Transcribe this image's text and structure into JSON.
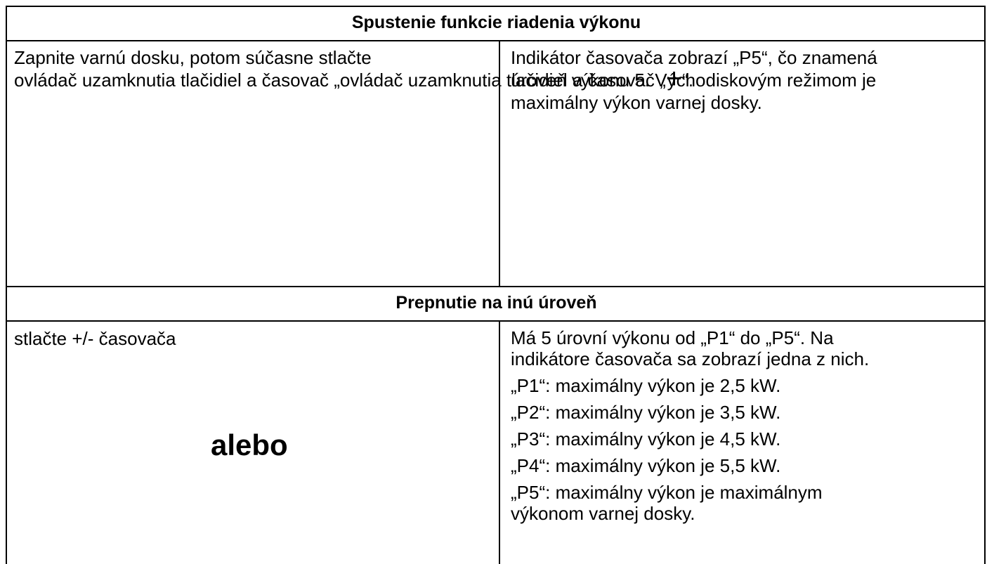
{
  "sections": [
    {
      "heading": "Spustenie funkcie riadenia výkonu",
      "left": {
        "lines": [
          "Zapnite varnú dosku, potom súčasne stlačte",
          "ovládač uzamknutia tlačidiel a časovač „"
        ],
        "symbol": "+",
        "after": "“."
      },
      "right": {
        "lines": [
          "Indikátor časovača zobrazí „P5“, čo znamená",
          "úroveň výkonu 5. Východiskovým režimom je",
          "maximálny výkon varnej dosky."
        ]
      }
    },
    {
      "heading": "Prepnutie na inú úroveň",
      "left": {
        "lines": [
          "stlačte +/- časovača"
        ],
        "connector": "alebo"
      },
      "right": {
        "lines": [
          "Má 5 úrovní výkonu od „P1“ do „P5“. Na",
          "indikátore časovača sa zobrazí jedna z nich."
        ],
        "items": [
          [
            "„P1“: maximálny výkon je 2,5 kW."
          ],
          [
            "„P2“: maximálny výkon je 3,5 kW."
          ],
          [
            "„P3“: maximálny výkon je 4,5 kW."
          ],
          [
            "„P4“: maximálny výkon je 5,5 kW."
          ],
          [
            "„P5“: maximálny výkon je maximálnym",
            "výkonom varnej dosky."
          ]
        ]
      }
    }
  ]
}
